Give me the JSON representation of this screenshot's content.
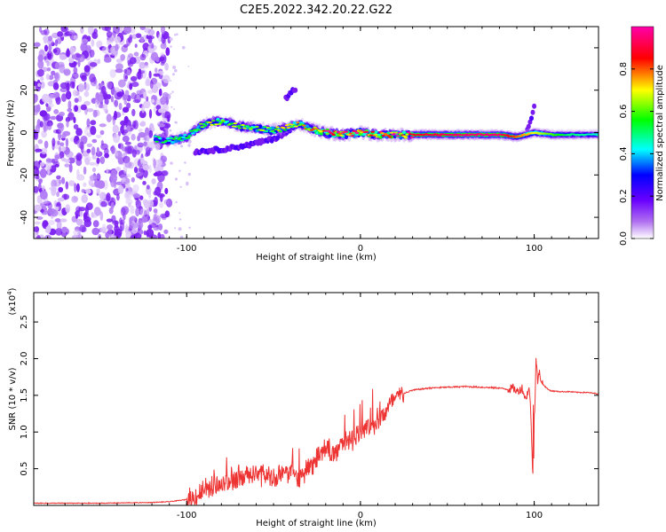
{
  "title": "C2E5.2022.342.20.22.G22",
  "chart_data": [
    {
      "type": "heatmap",
      "xlabel": "Height of straight line (km)",
      "ylabel": "Frequency (Hz)",
      "xlim": [
        -188,
        137
      ],
      "ylim": [
        -50,
        50
      ],
      "x_ticks": [
        -100,
        0,
        100
      ],
      "x_tick_labels": [
        "-100",
        "0",
        "100"
      ],
      "y_ticks": [
        -40,
        -20,
        0,
        20,
        40
      ],
      "y_tick_labels": [
        "-40",
        "-20",
        "0",
        "20",
        "40"
      ],
      "colorbar": {
        "label": "Normalized spectral amplitude",
        "range": [
          0,
          1
        ],
        "ticks": [
          0.0,
          0.2,
          0.4,
          0.6,
          0.8
        ],
        "tick_labels": [
          "0.0",
          "0.2",
          "0.4",
          "0.6",
          "0.8"
        ],
        "colors": [
          "#ffffff",
          "#8a2be2",
          "#0000ff",
          "#00ffff",
          "#00ff00",
          "#ffff00",
          "#ff0000",
          "#ff00ff"
        ]
      },
      "ridge": {
        "x": [
          -118,
          -110,
          -100,
          -92,
          -85,
          -78,
          -70,
          -60,
          -50,
          -40,
          -35,
          -30,
          -20,
          -10,
          0,
          10,
          20,
          40,
          60,
          80,
          90,
          100,
          110,
          120,
          137
        ],
        "y": [
          -3,
          -4,
          -2,
          3,
          5,
          5,
          3,
          2,
          1,
          3,
          4,
          2,
          0,
          -1,
          0,
          -1,
          -1,
          -1,
          -1,
          -1,
          -2,
          0,
          -1,
          -1,
          -1
        ],
        "amplitude": [
          0.45,
          0.5,
          0.5,
          0.55,
          0.6,
          0.55,
          0.55,
          0.55,
          0.6,
          0.6,
          0.65,
          0.7,
          0.8,
          0.85,
          0.85,
          0.8,
          0.85,
          0.9,
          0.95,
          0.95,
          0.8,
          0.7,
          0.6,
          0.5,
          0.45
        ]
      },
      "side_branches": [
        {
          "x": [
            -95,
            -80,
            -65,
            -50,
            -40
          ],
          "y": [
            -9,
            -8,
            -6,
            -3,
            1
          ]
        },
        {
          "x": [
            -43,
            -40,
            -37
          ],
          "y": [
            16,
            19,
            21
          ]
        },
        {
          "x": [
            96,
            98,
            100
          ],
          "y": [
            2,
            6,
            12
          ]
        }
      ],
      "noise_region": {
        "x": [
          -188,
          -110
        ],
        "y": [
          -50,
          50
        ]
      }
    },
    {
      "type": "line",
      "xlabel": "Height of straight line (km)",
      "ylabel": "SNR (10 * v/v)",
      "y_multiplier": "(x10",
      "y_multiplier_exp": "4",
      "y_multiplier_close": ")",
      "xlim": [
        -188,
        137
      ],
      "ylim": [
        0,
        2.9
      ],
      "x_ticks": [
        -100,
        0,
        100
      ],
      "x_tick_labels": [
        "-100",
        "0",
        "100"
      ],
      "y_ticks": [
        0.5,
        1.0,
        1.5,
        2.0,
        2.5
      ],
      "y_tick_labels": [
        "0.5",
        "1.0",
        "1.5",
        "2.0",
        "2.5"
      ],
      "color": "#ee3333",
      "series": [
        {
          "x": [
            -188,
            -150,
            -120,
            -110,
            -100,
            -95,
            -90,
            -85,
            -80,
            -75,
            -70,
            -65,
            -60,
            -55,
            -50,
            -45,
            -40,
            -35,
            -30,
            -25,
            -20,
            -15,
            -10,
            -5,
            0,
            5,
            10,
            15,
            20,
            25,
            30,
            40,
            50,
            60,
            70,
            80,
            85,
            88,
            90,
            93,
            95,
            97,
            98,
            99,
            100,
            101,
            102,
            103,
            105,
            108,
            110,
            115,
            120,
            125,
            130,
            137
          ],
          "y": [
            0.03,
            0.03,
            0.04,
            0.05,
            0.08,
            0.12,
            0.2,
            0.25,
            0.3,
            0.32,
            0.35,
            0.4,
            0.4,
            0.42,
            0.35,
            0.42,
            0.45,
            0.35,
            0.5,
            0.65,
            0.8,
            0.7,
            0.85,
            0.9,
            1.0,
            1.05,
            1.15,
            1.3,
            1.45,
            1.53,
            1.57,
            1.6,
            1.61,
            1.62,
            1.61,
            1.6,
            1.58,
            1.6,
            1.55,
            1.6,
            1.45,
            1.6,
            1.3,
            0.5,
            1.0,
            2.0,
            1.7,
            1.8,
            1.65,
            1.58,
            1.56,
            1.55,
            1.55,
            1.54,
            1.54,
            1.52
          ]
        }
      ]
    }
  ]
}
